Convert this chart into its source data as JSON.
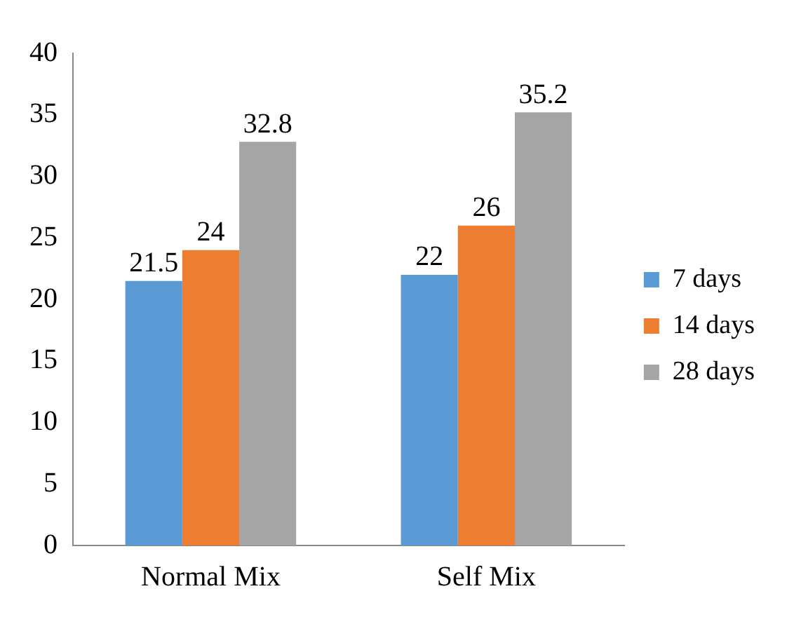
{
  "chart_data": {
    "type": "bar",
    "categories": [
      "Normal Mix",
      "Self Mix"
    ],
    "series": [
      {
        "name": "7 days",
        "color": "#5b9bd5",
        "values": [
          21.5,
          22
        ]
      },
      {
        "name": "14 days",
        "color": "#ed7d31",
        "values": [
          24,
          26
        ]
      },
      {
        "name": "28 days",
        "color": "#a5a5a5",
        "values": [
          32.8,
          35.2
        ]
      }
    ],
    "ylim": [
      0,
      40
    ],
    "yticks": [
      0,
      5,
      10,
      15,
      20,
      25,
      30,
      35,
      40
    ],
    "grid": false,
    "legend": "right",
    "data_labels": true
  }
}
